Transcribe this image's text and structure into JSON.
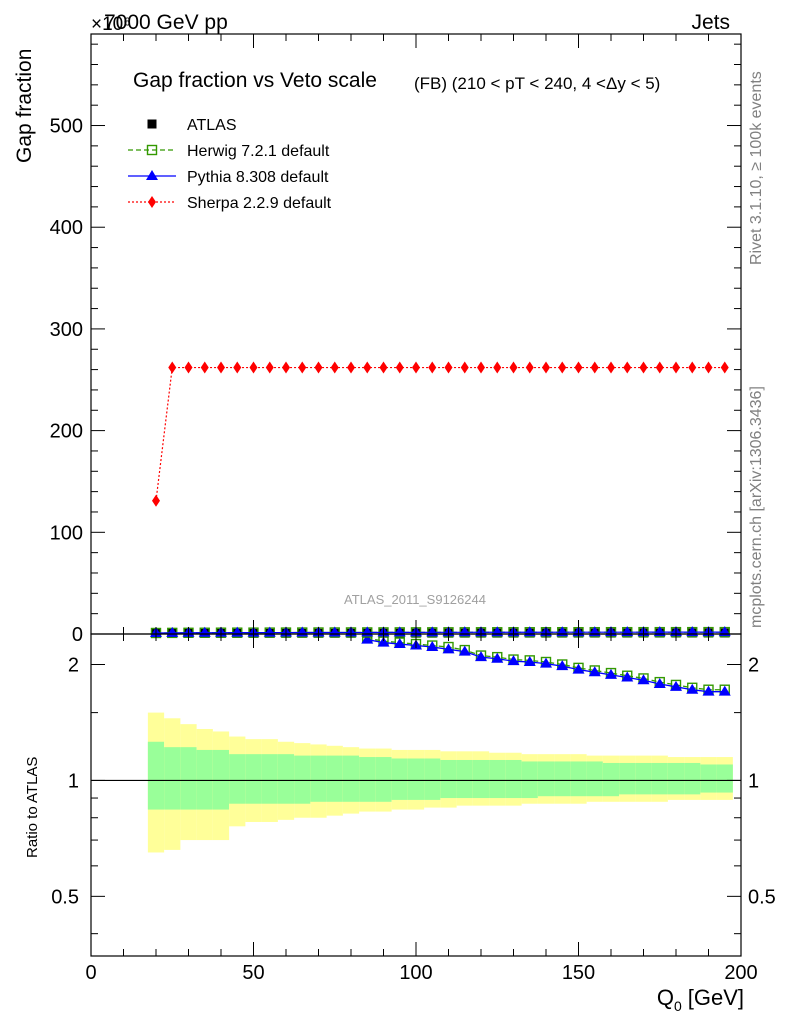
{
  "header": {
    "energy_label": "7000 GeV pp",
    "scale_exponent_label": "×10⁶",
    "process_label": "Jets"
  },
  "side_labels": {
    "rivet": "Rivet 3.1.10, ≥ 100k events",
    "mcplots": "mcplots.cern.ch [arXiv:1306.3436]"
  },
  "chart_data": {
    "type": "line",
    "title": "Gap fraction vs Veto scale",
    "subtitle": "(FB) (210 < pT < 240, 4 <Δy < 5)",
    "analysis_id": "ATLAS_2011_S9126244",
    "main_panel": {
      "ylabel": "Gap fraction",
      "ylim": [
        0,
        590
      ],
      "yticks": [
        0,
        100,
        200,
        300,
        400,
        500
      ],
      "ytick_labels": [
        "0",
        "100",
        "200",
        "300",
        "400",
        "500"
      ]
    },
    "ratio_panel": {
      "ylabel": "Ratio to ATLAS",
      "ylim": [
        0.35,
        2.4
      ],
      "log_scale": true,
      "yticks": [
        0.5,
        1,
        2
      ],
      "ytick_labels": [
        "0.5",
        "1",
        "2"
      ],
      "reference_line": 1
    },
    "xlabel": "Q0 [GeV]",
    "xlabel_main": "Q",
    "xlabel_sub": "0",
    "xlabel_unit": "[GeV]",
    "xlim": [
      0,
      200
    ],
    "xticks": [
      0,
      50,
      100,
      150,
      200
    ],
    "xtick_labels": [
      "0",
      "50",
      "100",
      "150",
      "200"
    ],
    "x": [
      20,
      25,
      30,
      35,
      40,
      45,
      50,
      55,
      60,
      65,
      70,
      75,
      80,
      85,
      90,
      95,
      100,
      105,
      110,
      115,
      120,
      125,
      130,
      135,
      140,
      145,
      150,
      155,
      160,
      165,
      170,
      175,
      180,
      185,
      190,
      195
    ],
    "bin_edges": [
      17.5,
      22.5,
      27.5,
      32.5,
      37.5,
      42.5,
      47.5,
      52.5,
      57.5,
      62.5,
      67.5,
      72.5,
      77.5,
      82.5,
      87.5,
      92.5,
      97.5,
      102.5,
      107.5,
      112.5,
      117.5,
      122.5,
      127.5,
      132.5,
      137.5,
      142.5,
      147.5,
      152.5,
      157.5,
      162.5,
      167.5,
      172.5,
      177.5,
      182.5,
      187.5,
      192.5,
      197.5
    ],
    "legend": [
      {
        "name": "ATLAS",
        "style": "marker",
        "color": "#000000",
        "marker": "square"
      },
      {
        "name": "Herwig 7.2.1 default",
        "style": "dashed",
        "color": "#339900",
        "marker": "open-square"
      },
      {
        "name": "Pythia 8.308 default",
        "style": "solid",
        "color": "#0000ff",
        "marker": "triangle"
      },
      {
        "name": "Sherpa 2.2.9 default",
        "style": "dotted",
        "color": "#ff0000",
        "marker": "diamond"
      }
    ],
    "series": [
      {
        "name": "ATLAS",
        "values": [
          0.5,
          0.55,
          0.6,
          0.62,
          0.64,
          0.66,
          0.68,
          0.7,
          0.71,
          0.72,
          0.73,
          0.74,
          0.75,
          0.76,
          0.77,
          0.78,
          0.79,
          0.8,
          0.81,
          0.82,
          0.83,
          0.84,
          0.85,
          0.86,
          0.87,
          0.88,
          0.89,
          0.9,
          0.91,
          0.92,
          0.93,
          0.94,
          0.95,
          0.96,
          0.97,
          0.98
        ]
      },
      {
        "name": "Herwig 7.2.1 default",
        "values": [
          1.0,
          1.1,
          1.2,
          1.25,
          1.3,
          1.33,
          1.36,
          1.39,
          1.42,
          1.45,
          1.48,
          1.51,
          1.54,
          1.56,
          1.58,
          1.6,
          1.62,
          1.64,
          1.66,
          1.68,
          1.7,
          1.72,
          1.73,
          1.74,
          1.75,
          1.76,
          1.77,
          1.78,
          1.79,
          1.8,
          1.81,
          1.82,
          1.83,
          1.84,
          1.85,
          1.86
        ]
      },
      {
        "name": "Pythia 8.308 default",
        "values": [
          1.0,
          1.1,
          1.2,
          1.25,
          1.3,
          1.33,
          1.36,
          1.39,
          1.42,
          1.45,
          1.48,
          1.51,
          1.54,
          1.56,
          1.58,
          1.6,
          1.62,
          1.64,
          1.66,
          1.68,
          1.7,
          1.72,
          1.73,
          1.74,
          1.75,
          1.76,
          1.77,
          1.78,
          1.79,
          1.8,
          1.81,
          1.82,
          1.83,
          1.84,
          1.85,
          1.86
        ]
      },
      {
        "name": "Sherpa 2.2.9 default",
        "values": [
          131,
          262,
          262,
          262,
          262,
          262,
          262,
          262,
          262,
          262,
          262,
          262,
          262,
          262,
          262,
          262,
          262,
          262,
          262,
          262,
          262,
          262,
          262,
          262,
          262,
          262,
          262,
          262,
          262,
          262,
          262,
          262,
          262,
          262,
          262,
          262
        ]
      }
    ],
    "ratio_series": [
      {
        "name": "Herwig 7.2.1 default",
        "values": [
          null,
          null,
          null,
          null,
          null,
          null,
          null,
          null,
          null,
          null,
          null,
          null,
          null,
          2.34,
          2.3,
          2.28,
          2.26,
          2.24,
          2.22,
          2.18,
          2.11,
          2.09,
          2.06,
          2.05,
          2.03,
          2.0,
          1.96,
          1.93,
          1.9,
          1.87,
          1.84,
          1.8,
          1.77,
          1.74,
          1.72,
          1.72
        ]
      },
      {
        "name": "Pythia 8.308 default",
        "values": [
          null,
          null,
          null,
          null,
          null,
          null,
          null,
          null,
          null,
          null,
          null,
          null,
          null,
          2.32,
          2.28,
          2.26,
          2.24,
          2.22,
          2.19,
          2.16,
          2.09,
          2.07,
          2.04,
          2.03,
          2.01,
          1.98,
          1.94,
          1.91,
          1.88,
          1.85,
          1.82,
          1.78,
          1.75,
          1.72,
          1.7,
          1.7
        ]
      }
    ],
    "ratio_bands": {
      "color_inner": "#99ff99",
      "color_outer": "#ffff99",
      "inner_low": [
        0.84,
        0.84,
        0.84,
        0.84,
        0.84,
        0.87,
        0.87,
        0.87,
        0.87,
        0.87,
        0.88,
        0.88,
        0.88,
        0.88,
        0.88,
        0.89,
        0.89,
        0.89,
        0.9,
        0.9,
        0.9,
        0.9,
        0.9,
        0.9,
        0.91,
        0.91,
        0.91,
        0.91,
        0.91,
        0.92,
        0.92,
        0.92,
        0.92,
        0.92,
        0.93,
        0.93
      ],
      "inner_high": [
        1.26,
        1.22,
        1.22,
        1.2,
        1.2,
        1.17,
        1.17,
        1.17,
        1.17,
        1.16,
        1.16,
        1.16,
        1.16,
        1.15,
        1.15,
        1.14,
        1.14,
        1.14,
        1.13,
        1.13,
        1.13,
        1.13,
        1.13,
        1.12,
        1.12,
        1.12,
        1.12,
        1.12,
        1.11,
        1.11,
        1.11,
        1.11,
        1.11,
        1.11,
        1.1,
        1.1
      ],
      "outer_low": [
        0.65,
        0.66,
        0.7,
        0.7,
        0.7,
        0.76,
        0.78,
        0.78,
        0.79,
        0.8,
        0.8,
        0.81,
        0.82,
        0.83,
        0.83,
        0.84,
        0.84,
        0.85,
        0.85,
        0.86,
        0.86,
        0.86,
        0.86,
        0.87,
        0.87,
        0.87,
        0.87,
        0.88,
        0.88,
        0.88,
        0.88,
        0.88,
        0.89,
        0.89,
        0.89,
        0.89
      ],
      "outer_high": [
        1.5,
        1.45,
        1.4,
        1.36,
        1.34,
        1.3,
        1.28,
        1.28,
        1.26,
        1.25,
        1.24,
        1.23,
        1.22,
        1.21,
        1.21,
        1.2,
        1.2,
        1.2,
        1.19,
        1.19,
        1.19,
        1.18,
        1.18,
        1.17,
        1.17,
        1.17,
        1.17,
        1.16,
        1.16,
        1.16,
        1.16,
        1.16,
        1.15,
        1.15,
        1.15,
        1.15
      ]
    }
  }
}
